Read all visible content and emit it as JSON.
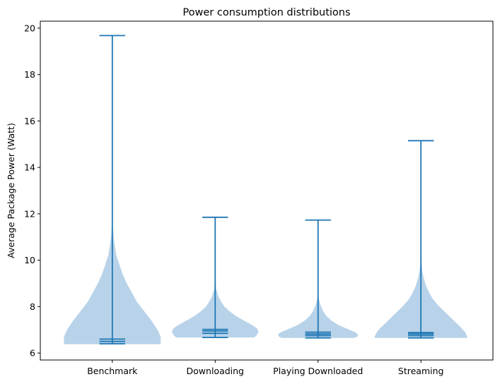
{
  "chart_data": {
    "type": "violin",
    "title": "Power consumption distributions",
    "xlabel": "",
    "ylabel": "Average Package Power (Watt)",
    "ylim": [
      5.7,
      20.3
    ],
    "yticks": [
      6,
      8,
      10,
      12,
      14,
      16,
      18,
      20
    ],
    "grid": false,
    "colors": {
      "body": "#b8d3e9",
      "lines": "#1f77b4"
    },
    "categories": [
      "Benchmark",
      "Downloading",
      "Playing Downloaded",
      "Streaming"
    ],
    "series": [
      {
        "category": "Benchmark",
        "min": 6.38,
        "max": 19.68,
        "quantile_lines": [
          6.4,
          6.5,
          6.6
        ],
        "profile": [
          [
            6.38,
            0.47
          ],
          [
            6.42,
            0.47
          ],
          [
            6.5,
            0.47
          ],
          [
            6.7,
            0.47
          ],
          [
            7.0,
            0.44
          ],
          [
            7.4,
            0.38
          ],
          [
            7.8,
            0.31
          ],
          [
            8.2,
            0.24
          ],
          [
            8.6,
            0.19
          ],
          [
            9.0,
            0.14
          ],
          [
            9.4,
            0.1
          ],
          [
            9.8,
            0.07
          ],
          [
            10.2,
            0.04
          ],
          [
            10.6,
            0.025
          ],
          [
            11.0,
            0.012
          ],
          [
            11.5,
            0.005
          ],
          [
            12.5,
            0.002
          ],
          [
            19.68,
            0.0
          ]
        ]
      },
      {
        "category": "Downloading",
        "min": 6.67,
        "max": 11.85,
        "quantile_lines": [
          6.67,
          6.85,
          6.95,
          7.02
        ],
        "profile": [
          [
            6.67,
            0.38
          ],
          [
            6.75,
            0.4
          ],
          [
            6.9,
            0.42
          ],
          [
            7.05,
            0.41
          ],
          [
            7.2,
            0.36
          ],
          [
            7.4,
            0.28
          ],
          [
            7.6,
            0.2
          ],
          [
            7.8,
            0.14
          ],
          [
            8.0,
            0.09
          ],
          [
            8.2,
            0.06
          ],
          [
            8.4,
            0.035
          ],
          [
            8.6,
            0.02
          ],
          [
            8.8,
            0.008
          ],
          [
            9.2,
            0.002
          ],
          [
            11.85,
            0.0
          ]
        ]
      },
      {
        "category": "Playing Downloaded",
        "min": 6.65,
        "max": 11.73,
        "quantile_lines": [
          6.65,
          6.75,
          6.82,
          6.9
        ],
        "profile": [
          [
            6.65,
            0.35
          ],
          [
            6.7,
            0.38
          ],
          [
            6.8,
            0.39
          ],
          [
            6.9,
            0.36
          ],
          [
            7.05,
            0.28
          ],
          [
            7.2,
            0.2
          ],
          [
            7.4,
            0.13
          ],
          [
            7.6,
            0.08
          ],
          [
            7.8,
            0.05
          ],
          [
            8.0,
            0.03
          ],
          [
            8.2,
            0.015
          ],
          [
            8.4,
            0.006
          ],
          [
            8.8,
            0.002
          ],
          [
            11.73,
            0.0
          ]
        ]
      },
      {
        "category": "Streaming",
        "min": 6.65,
        "max": 15.15,
        "quantile_lines": [
          6.65,
          6.75,
          6.82,
          6.88
        ],
        "profile": [
          [
            6.65,
            0.45
          ],
          [
            6.7,
            0.45
          ],
          [
            6.9,
            0.43
          ],
          [
            7.1,
            0.39
          ],
          [
            7.4,
            0.32
          ],
          [
            7.7,
            0.25
          ],
          [
            8.0,
            0.18
          ],
          [
            8.3,
            0.12
          ],
          [
            8.6,
            0.08
          ],
          [
            8.9,
            0.05
          ],
          [
            9.2,
            0.03
          ],
          [
            9.5,
            0.015
          ],
          [
            9.8,
            0.007
          ],
          [
            10.5,
            0.003
          ],
          [
            12.0,
            0.002
          ],
          [
            14.0,
            0.0015
          ],
          [
            15.15,
            0.0
          ]
        ]
      }
    ]
  }
}
